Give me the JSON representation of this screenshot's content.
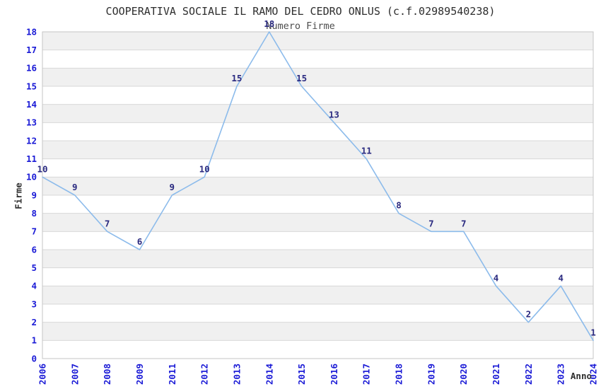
{
  "chart_data": {
    "type": "line",
    "title": "COOPERATIVA SOCIALE IL RAMO DEL CEDRO ONLUS (c.f.02989540238)",
    "subtitle": "Numero Firme",
    "xlabel": "Anno",
    "ylabel": "Firme",
    "categories": [
      "2006",
      "2007",
      "2008",
      "2009",
      "2011",
      "2012",
      "2013",
      "2014",
      "2015",
      "2016",
      "2017",
      "2018",
      "2019",
      "2020",
      "2021",
      "2022",
      "2023",
      "2024"
    ],
    "values": [
      10,
      9,
      7,
      6,
      9,
      10,
      15,
      18,
      15,
      13,
      11,
      8,
      7,
      7,
      4,
      2,
      4,
      1
    ],
    "ylim": [
      0,
      18
    ],
    "ytick_step": 1,
    "legend": "none",
    "grid": "horizontal-bands",
    "x_tick_rotation": 90,
    "colors": {
      "line": "#8cbbeb",
      "data_label": "#2a2a80",
      "tick_label": "#1a1ad6",
      "title": "#2e2e2e",
      "subtitle": "#4d4d4d",
      "axis_title": "#2e2e2e",
      "band": "#f0f0f0",
      "band_alt": "#ffffff",
      "gridline": "#d8d8d8",
      "plot_border": "#c6c6c6",
      "background": "#ffffff"
    }
  }
}
